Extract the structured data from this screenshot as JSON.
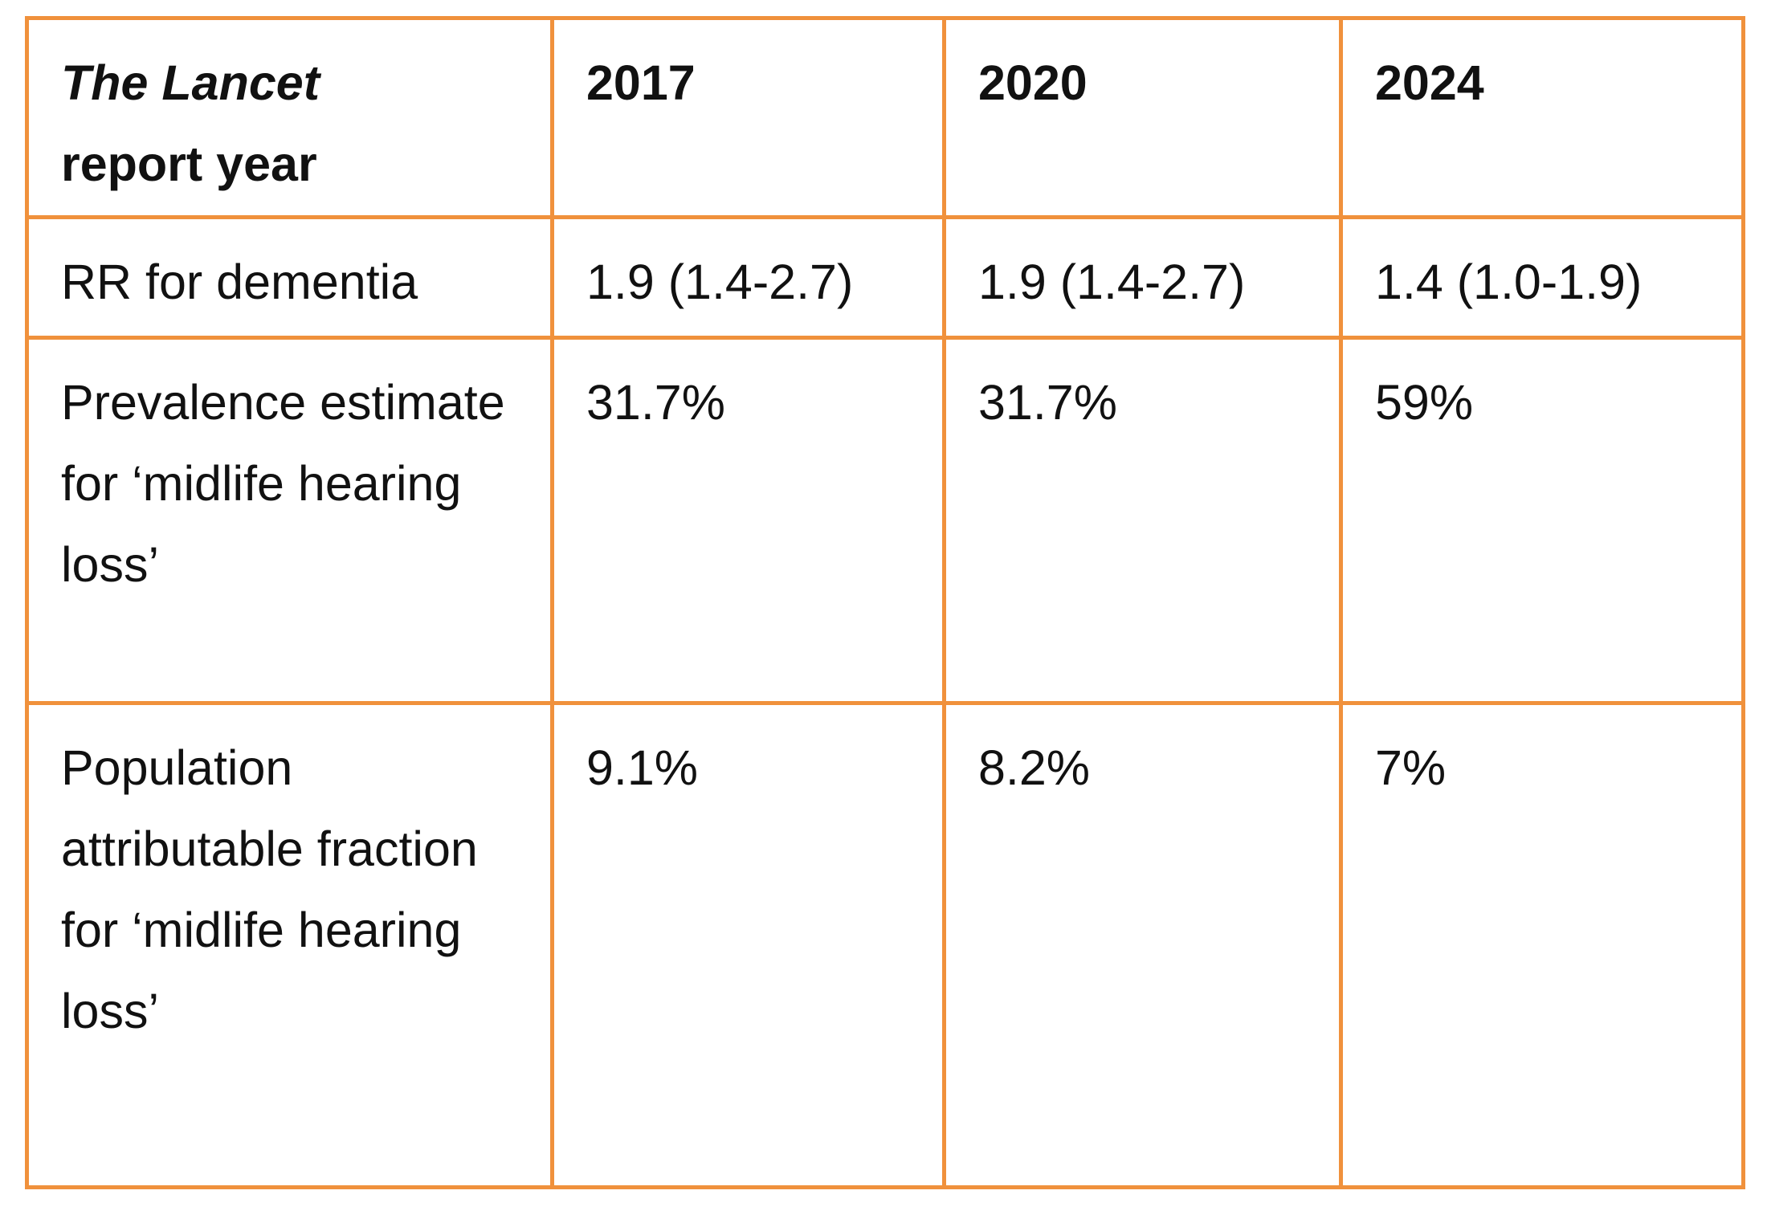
{
  "table": {
    "header": [
      {
        "title_italic": "The Lancet",
        "title_rest": "report year"
      },
      "2017",
      "2020",
      "2024"
    ],
    "rows": [
      [
        "RR for dementia",
        "1.9 (1.4-2.7)",
        "1.9 (1.4-2.7)",
        "1.4 (1.0-1.9)"
      ],
      [
        "Prevalence estimate for ‘midlife hearing loss’",
        "31.7%",
        "31.7%",
        "59%"
      ],
      [
        "Population attributable fraction for ‘midlife hearing loss’",
        "9.1%",
        "8.2%",
        "7%"
      ]
    ]
  }
}
